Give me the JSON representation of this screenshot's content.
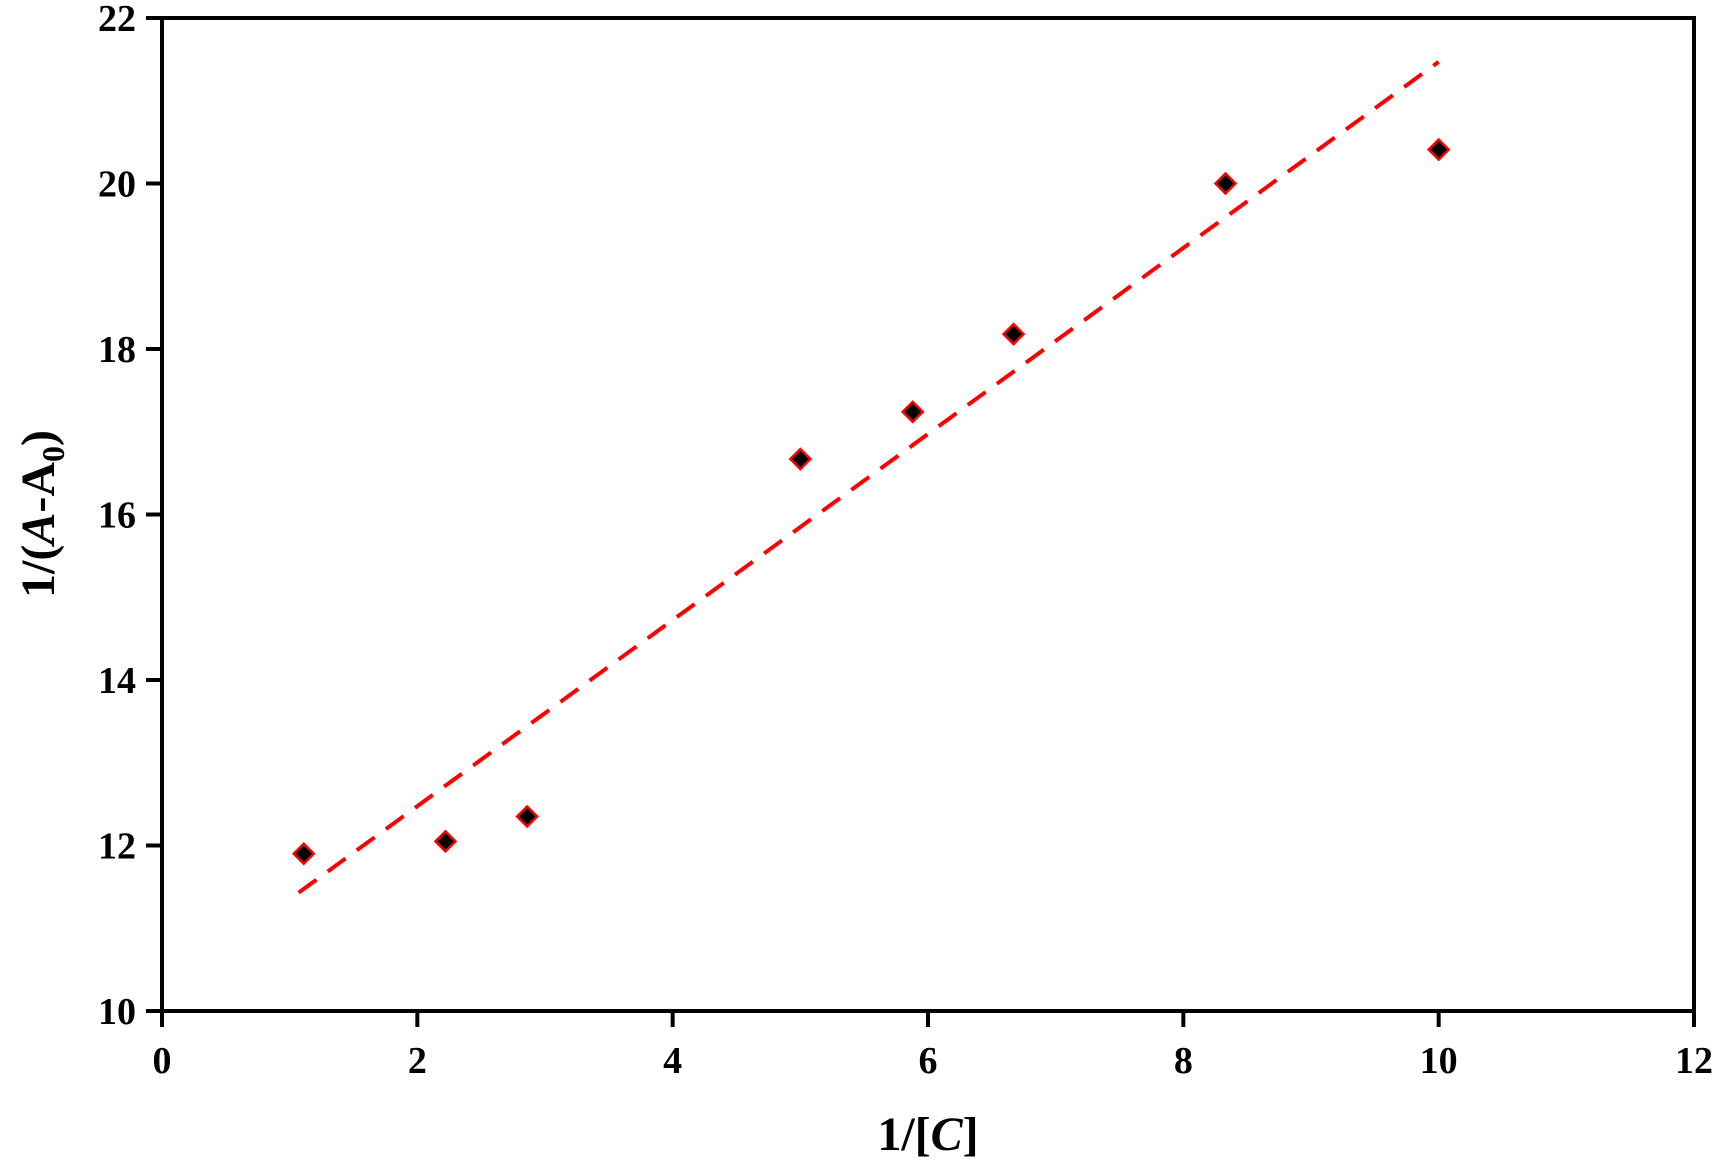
{
  "chart_data": {
    "type": "scatter",
    "xlabel": {
      "prefix": "1/[",
      "italic": "C",
      "suffix": "]"
    },
    "ylabel": {
      "prefix": "1/(",
      "italic": "A",
      "mid": "-A",
      "sub": "0",
      "suffix": ")"
    },
    "xlim": [
      0,
      12
    ],
    "ylim": [
      10,
      22
    ],
    "xticks": [
      0,
      2,
      4,
      6,
      8,
      10,
      12
    ],
    "yticks": [
      10,
      12,
      14,
      16,
      18,
      20,
      22
    ],
    "grid": false,
    "legend": "none",
    "series": [
      {
        "marker": "diamond",
        "marker_fill": "#000000",
        "marker_edge": "#ff0000",
        "x": [
          1.11,
          2.22,
          2.86,
          5.0,
          5.88,
          6.67,
          8.33,
          10.0
        ],
        "y": [
          11.9,
          12.05,
          12.35,
          16.67,
          17.24,
          18.18,
          20.0,
          20.41
        ]
      }
    ],
    "trendline": {
      "style": "dashed",
      "color": "#ff0000",
      "x": [
        1.07,
        10.0
      ],
      "y": [
        11.43,
        21.47
      ]
    }
  }
}
